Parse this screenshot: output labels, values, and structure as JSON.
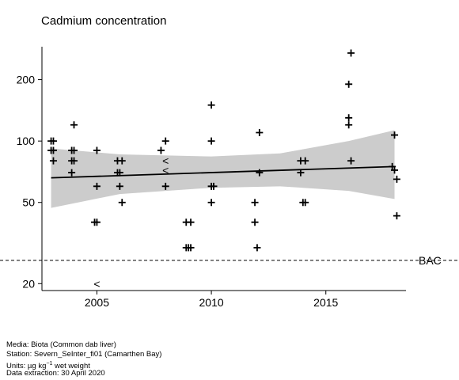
{
  "chart_data": {
    "type": "scatter",
    "title": "Cadmium concentration",
    "xlabel": "",
    "ylabel": "",
    "y_scale": "log",
    "xlim": [
      2002.6,
      2018.5
    ],
    "ylim": [
      18.5,
      290
    ],
    "x_ticks": [
      2005,
      2010,
      2015
    ],
    "y_ticks": [
      20,
      50,
      100,
      200
    ],
    "grid": false,
    "points": [
      {
        "x": 2003,
        "y": 100,
        "marker": "+"
      },
      {
        "x": 2003.1,
        "y": 100,
        "marker": "+"
      },
      {
        "x": 2003,
        "y": 90,
        "marker": "+"
      },
      {
        "x": 2003.1,
        "y": 90,
        "marker": "+"
      },
      {
        "x": 2003.1,
        "y": 80,
        "marker": "+"
      },
      {
        "x": 2003.9,
        "y": 90,
        "marker": "+"
      },
      {
        "x": 2004,
        "y": 90,
        "marker": "+"
      },
      {
        "x": 2003.9,
        "y": 80,
        "marker": "+"
      },
      {
        "x": 2004,
        "y": 80,
        "marker": "+"
      },
      {
        "x": 2003.9,
        "y": 70,
        "marker": "+"
      },
      {
        "x": 2004,
        "y": 120,
        "marker": "+"
      },
      {
        "x": 2005,
        "y": 90,
        "marker": "+"
      },
      {
        "x": 2005,
        "y": 60,
        "marker": "+"
      },
      {
        "x": 2004.9,
        "y": 40,
        "marker": "+"
      },
      {
        "x": 2005,
        "y": 40,
        "marker": "+"
      },
      {
        "x": 2005,
        "y": 20,
        "marker": "<"
      },
      {
        "x": 2005.9,
        "y": 80,
        "marker": "+"
      },
      {
        "x": 2006.1,
        "y": 80,
        "marker": "+"
      },
      {
        "x": 2005.9,
        "y": 70,
        "marker": "+"
      },
      {
        "x": 2006,
        "y": 70,
        "marker": "+"
      },
      {
        "x": 2006,
        "y": 60,
        "marker": "+"
      },
      {
        "x": 2006.1,
        "y": 50,
        "marker": "+"
      },
      {
        "x": 2007.8,
        "y": 90,
        "marker": "+"
      },
      {
        "x": 2008,
        "y": 100,
        "marker": "+"
      },
      {
        "x": 2008,
        "y": 60,
        "marker": "+"
      },
      {
        "x": 2008,
        "y": 80,
        "marker": "<"
      },
      {
        "x": 2008,
        "y": 72,
        "marker": "<"
      },
      {
        "x": 2008.9,
        "y": 40,
        "marker": "+"
      },
      {
        "x": 2009.1,
        "y": 40,
        "marker": "+"
      },
      {
        "x": 2008.9,
        "y": 30,
        "marker": "+"
      },
      {
        "x": 2009,
        "y": 30,
        "marker": "+"
      },
      {
        "x": 2009.1,
        "y": 30,
        "marker": "+"
      },
      {
        "x": 2010,
        "y": 150,
        "marker": "+"
      },
      {
        "x": 2010,
        "y": 100,
        "marker": "+"
      },
      {
        "x": 2010,
        "y": 60,
        "marker": "+"
      },
      {
        "x": 2010.1,
        "y": 60,
        "marker": "+"
      },
      {
        "x": 2010,
        "y": 50,
        "marker": "+"
      },
      {
        "x": 2012.1,
        "y": 110,
        "marker": "+"
      },
      {
        "x": 2012.1,
        "y": 70,
        "marker": "+"
      },
      {
        "x": 2011.9,
        "y": 50,
        "marker": "+"
      },
      {
        "x": 2011.9,
        "y": 40,
        "marker": "+"
      },
      {
        "x": 2012,
        "y": 30,
        "marker": "+"
      },
      {
        "x": 2013.9,
        "y": 80,
        "marker": "+"
      },
      {
        "x": 2014.1,
        "y": 80,
        "marker": "+"
      },
      {
        "x": 2013.9,
        "y": 70,
        "marker": "+"
      },
      {
        "x": 2014,
        "y": 50,
        "marker": "+"
      },
      {
        "x": 2014.1,
        "y": 50,
        "marker": "+"
      },
      {
        "x": 2016.1,
        "y": 270,
        "marker": "+"
      },
      {
        "x": 2016,
        "y": 190,
        "marker": "+"
      },
      {
        "x": 2016,
        "y": 130,
        "marker": "+"
      },
      {
        "x": 2016,
        "y": 120,
        "marker": "+"
      },
      {
        "x": 2016.1,
        "y": 80,
        "marker": "+"
      },
      {
        "x": 2018,
        "y": 107,
        "marker": "+"
      },
      {
        "x": 2017.9,
        "y": 75,
        "marker": "+"
      },
      {
        "x": 2018,
        "y": 72,
        "marker": "+"
      },
      {
        "x": 2018.1,
        "y": 65,
        "marker": "+"
      },
      {
        "x": 2018.1,
        "y": 43,
        "marker": "+"
      }
    ],
    "trend": {
      "x": [
        2003,
        2018
      ],
      "y": [
        66,
        75
      ]
    },
    "band": {
      "x": [
        2003,
        2006,
        2010,
        2013,
        2016,
        2018
      ],
      "lower": [
        47,
        55,
        59,
        60,
        57,
        52
      ],
      "upper": [
        92,
        86,
        84,
        87,
        100,
        113
      ]
    },
    "reference_line": {
      "label": "BAC",
      "y": 26
    }
  },
  "footer": {
    "media": "Media: Biota (Common dab liver)",
    "station": "Station: Severn_SeInter_fi01 (Camarthen Bay)",
    "units_prefix": "Units: µg kg",
    "units_exp": "−1",
    "units_suffix": " wet weight",
    "extraction": "Data extraction: 30 April 2020"
  }
}
